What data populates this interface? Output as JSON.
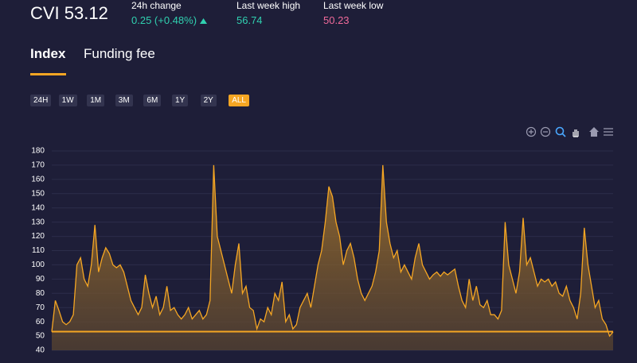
{
  "header": {
    "title": "CVI 53.12",
    "stats": [
      {
        "label": "24h change",
        "value": "0.25 (+0.48%)"
      },
      {
        "label": "Last week high",
        "value": "56.74"
      },
      {
        "label": "Last week low",
        "value": "50.23"
      }
    ]
  },
  "tabs": [
    "Index",
    "Funding fee"
  ],
  "ranges": [
    "24H",
    "1W",
    "1M",
    "3M",
    "6M",
    "1Y",
    "2Y",
    "ALL"
  ],
  "chart_data": {
    "type": "area",
    "series": [
      {
        "name": "CVI",
        "color": "#f5a623",
        "values": [
          53,
          75,
          68,
          60,
          58,
          60,
          65,
          100,
          105,
          90,
          85,
          100,
          128,
          95,
          105,
          112,
          108,
          100,
          98,
          100,
          95,
          85,
          75,
          70,
          65,
          70,
          93,
          80,
          70,
          78,
          65,
          70,
          85,
          68,
          70,
          65,
          62,
          65,
          70,
          62,
          65,
          68,
          62,
          65,
          75,
          170,
          120,
          110,
          100,
          90,
          80,
          100,
          115,
          80,
          85,
          70,
          68,
          55,
          62,
          60,
          70,
          65,
          80,
          75,
          88,
          60,
          65,
          55,
          58,
          70,
          75,
          80,
          70,
          85,
          100,
          110,
          130,
          155,
          148,
          130,
          120,
          100,
          110,
          115,
          105,
          90,
          80,
          75,
          80,
          85,
          95,
          110,
          170,
          130,
          115,
          105,
          110,
          95,
          100,
          95,
          90,
          105,
          115,
          100,
          95,
          90,
          93,
          95,
          92,
          95,
          93,
          95,
          97,
          85,
          75,
          70,
          90,
          75,
          85,
          72,
          70,
          75,
          65,
          65,
          62,
          68,
          130,
          100,
          90,
          80,
          95,
          133,
          100,
          105,
          95,
          85,
          90,
          88,
          90,
          85,
          88,
          80,
          78,
          85,
          75,
          70,
          62,
          80,
          126,
          100,
          85,
          70,
          75,
          62,
          58,
          50,
          53
        ]
      }
    ],
    "current_line": 53.12,
    "ylim": [
      40,
      180
    ],
    "yticks": [
      40,
      50,
      60,
      70,
      80,
      90,
      100,
      110,
      120,
      130,
      140,
      150,
      160,
      170,
      180
    ],
    "grid": true
  }
}
